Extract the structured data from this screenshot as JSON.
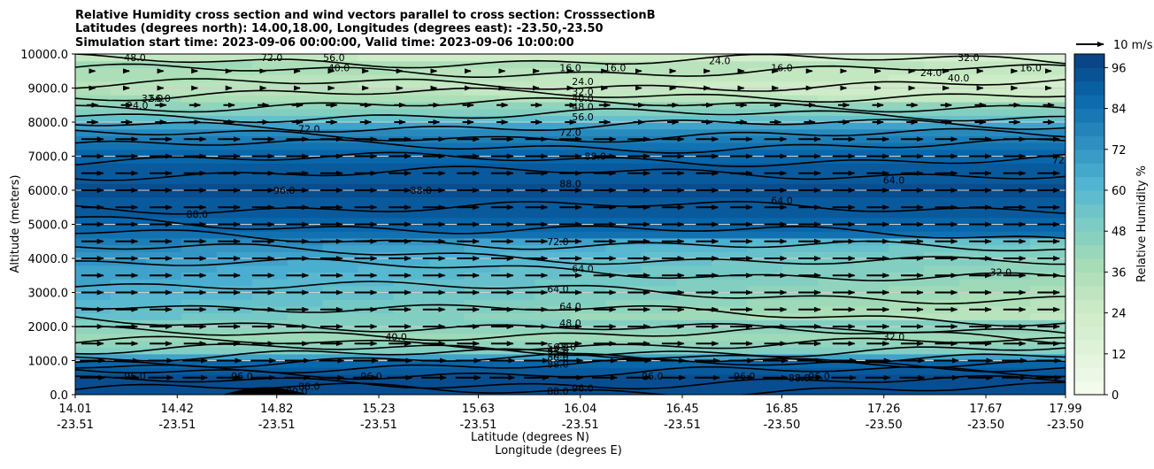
{
  "chart_data": {
    "type": "heatmap",
    "title_lines": [
      "Relative Humidity cross section and wind vectors parallel to cross section: CrosssectionB",
      "Latitudes (degrees north): 14.00,18.00, Longitudes (degrees east): -23.50,-23.50",
      "Simulation start time: 2023-09-06 00:00:00, Valid time: 2023-09-06 10:00:00"
    ],
    "xlabel": "Latitude (degrees N)",
    "xlabel2": "Longitude (degrees E)",
    "ylabel": "Altitude (meters)",
    "xlim": [
      14.01,
      17.99
    ],
    "ylim": [
      0,
      10000
    ],
    "x_ticks": [
      {
        "lat": "14.01",
        "lon": "-23.51",
        "v": 14.01
      },
      {
        "lat": "14.42",
        "lon": "-23.51",
        "v": 14.42
      },
      {
        "lat": "14.82",
        "lon": "-23.51",
        "v": 14.82
      },
      {
        "lat": "15.23",
        "lon": "-23.51",
        "v": 15.23
      },
      {
        "lat": "15.63",
        "lon": "-23.51",
        "v": 15.63
      },
      {
        "lat": "16.04",
        "lon": "-23.51",
        "v": 16.04
      },
      {
        "lat": "16.45",
        "lon": "-23.51",
        "v": 16.45
      },
      {
        "lat": "16.85",
        "lon": "-23.50",
        "v": 16.85
      },
      {
        "lat": "17.26",
        "lon": "-23.50",
        "v": 17.26
      },
      {
        "lat": "17.67",
        "lon": "-23.50",
        "v": 17.67
      },
      {
        "lat": "17.99",
        "lon": "-23.50",
        "v": 17.99
      }
    ],
    "y_ticks": [
      {
        "label": "0.0",
        "v": 0
      },
      {
        "label": "1000.0",
        "v": 1000
      },
      {
        "label": "2000.0",
        "v": 2000
      },
      {
        "label": "3000.0",
        "v": 3000
      },
      {
        "label": "4000.0",
        "v": 4000
      },
      {
        "label": "5000.0",
        "v": 5000
      },
      {
        "label": "6000.0",
        "v": 6000
      },
      {
        "label": "7000.0",
        "v": 7000
      },
      {
        "label": "8000.0",
        "v": 8000
      },
      {
        "label": "9000.0",
        "v": 9000
      },
      {
        "label": "10000.0",
        "v": 10000
      }
    ],
    "colorbar": {
      "label": "Relative Humidity %",
      "ticks": [
        "0",
        "12",
        "24",
        "36",
        "48",
        "60",
        "72",
        "84",
        "96"
      ],
      "min": 0,
      "max": 100,
      "step": 4,
      "colors": [
        "#f7fcf0",
        "#e0f3db",
        "#ccebc5",
        "#a8ddb5",
        "#7bccc4",
        "#4eb3d3",
        "#2b8cbe",
        "#0868ac",
        "#084081"
      ]
    },
    "quiver_key": {
      "label": "10 m/s",
      "speed": 10
    },
    "wind_direction": "parallel to cross section (northward)",
    "rh_profile": [
      {
        "alt": 0,
        "rh": 96
      },
      {
        "alt": 500,
        "rh": 96
      },
      {
        "alt": 900,
        "rh": 88
      },
      {
        "alt": 1300,
        "rh": 48
      },
      {
        "alt": 1800,
        "rh": 40
      },
      {
        "alt": 2300,
        "rh": 56
      },
      {
        "alt": 3000,
        "rh": 64
      },
      {
        "alt": 4000,
        "rh": 72
      },
      {
        "alt": 5000,
        "rh": 88
      },
      {
        "alt": 6000,
        "rh": 96
      },
      {
        "alt": 7000,
        "rh": 88
      },
      {
        "alt": 7800,
        "rh": 72
      },
      {
        "alt": 8300,
        "rh": 48
      },
      {
        "alt": 9000,
        "rh": 32
      },
      {
        "alt": 9700,
        "rh": 40
      },
      {
        "alt": 10000,
        "rh": 24
      }
    ],
    "contours": [
      {
        "level": "96.0",
        "alt": 6000,
        "lat": 14.85
      },
      {
        "level": "88.0",
        "alt": 5300,
        "lat": 14.5
      },
      {
        "level": "88.0",
        "alt": 7000,
        "lat": 16.1
      },
      {
        "level": "88.0",
        "alt": 6200,
        "lat": 16.0
      },
      {
        "level": "88.0",
        "alt": 6000,
        "lat": 15.4
      },
      {
        "level": "72.0",
        "alt": 4500,
        "lat": 15.95
      },
      {
        "level": "72.0",
        "alt": 7800,
        "lat": 14.95
      },
      {
        "level": "72.0",
        "alt": 7700,
        "lat": 16.0
      },
      {
        "level": "72.0",
        "alt": 6900,
        "lat": 17.98
      },
      {
        "level": "64.0",
        "alt": 3700,
        "lat": 16.05
      },
      {
        "level": "64.0",
        "alt": 3100,
        "lat": 15.95
      },
      {
        "level": "64.0",
        "alt": 2600,
        "lat": 16.0
      },
      {
        "level": "64.0",
        "alt": 6300,
        "lat": 17.3
      },
      {
        "level": "64.0",
        "alt": 5700,
        "lat": 16.85
      },
      {
        "level": "48.0",
        "alt": 2100,
        "lat": 16.0
      },
      {
        "level": "48.0",
        "alt": 1400,
        "lat": 15.98
      },
      {
        "level": "40.0",
        "alt": 1700,
        "lat": 15.3
      },
      {
        "level": "32.0",
        "alt": 3600,
        "lat": 17.73
      },
      {
        "level": "32.0",
        "alt": 1700,
        "lat": 17.3
      },
      {
        "level": "40.0",
        "alt": 9300,
        "lat": 17.56
      },
      {
        "level": "24.0",
        "alt": 9450,
        "lat": 17.45
      },
      {
        "level": "16.0",
        "alt": 9600,
        "lat": 17.85
      },
      {
        "level": "16.0",
        "alt": 9600,
        "lat": 16.18
      },
      {
        "level": "16.0",
        "alt": 9600,
        "lat": 16.85
      },
      {
        "level": "24.0",
        "alt": 9800,
        "lat": 16.6
      },
      {
        "level": "32.0",
        "alt": 9900,
        "lat": 17.6
      },
      {
        "level": "24.0",
        "alt": 9200,
        "lat": 16.05
      },
      {
        "level": "32.0",
        "alt": 8900,
        "lat": 16.05
      },
      {
        "level": "40.0",
        "alt": 8700,
        "lat": 16.05
      },
      {
        "level": "48.0",
        "alt": 8450,
        "lat": 16.05
      },
      {
        "level": "56.0",
        "alt": 8150,
        "lat": 16.05
      },
      {
        "level": "16.0",
        "alt": 9600,
        "lat": 16.0
      },
      {
        "level": "40.0",
        "alt": 9600,
        "lat": 15.07
      },
      {
        "level": "56.0",
        "alt": 9900,
        "lat": 15.05
      },
      {
        "level": "72.0",
        "alt": 9900,
        "lat": 14.8
      },
      {
        "level": "48.0",
        "alt": 9900,
        "lat": 14.25
      },
      {
        "level": "24.0",
        "alt": 8500,
        "lat": 14.26
      },
      {
        "level": "32.0",
        "alt": 8700,
        "lat": 14.32
      },
      {
        "level": "56.0",
        "alt": 8700,
        "lat": 14.35
      },
      {
        "level": "96.0",
        "alt": 550,
        "lat": 14.25
      },
      {
        "level": "96.0",
        "alt": 550,
        "lat": 14.68
      },
      {
        "level": "96.0",
        "alt": 550,
        "lat": 15.2
      },
      {
        "level": "96.0",
        "alt": 550,
        "lat": 16.33
      },
      {
        "level": "96.0",
        "alt": 550,
        "lat": 16.7
      },
      {
        "level": "96.0",
        "alt": 550,
        "lat": 17.0
      },
      {
        "level": "88.0",
        "alt": 500,
        "lat": 16.92
      },
      {
        "level": "88.0",
        "alt": 250,
        "lat": 14.95
      },
      {
        "level": "80.0",
        "alt": 100,
        "lat": 14.9
      },
      {
        "level": "88.0",
        "alt": 900,
        "lat": 15.95
      },
      {
        "level": "80.0",
        "alt": 1100,
        "lat": 15.95
      },
      {
        "level": "72.0",
        "alt": 1200,
        "lat": 15.95
      },
      {
        "level": "64.0",
        "alt": 1300,
        "lat": 15.95
      },
      {
        "level": "56.0",
        "alt": 1400,
        "lat": 15.95
      },
      {
        "level": "96.0",
        "alt": 200,
        "lat": 16.05
      },
      {
        "level": "88.0",
        "alt": 100,
        "lat": 15.95
      }
    ]
  }
}
